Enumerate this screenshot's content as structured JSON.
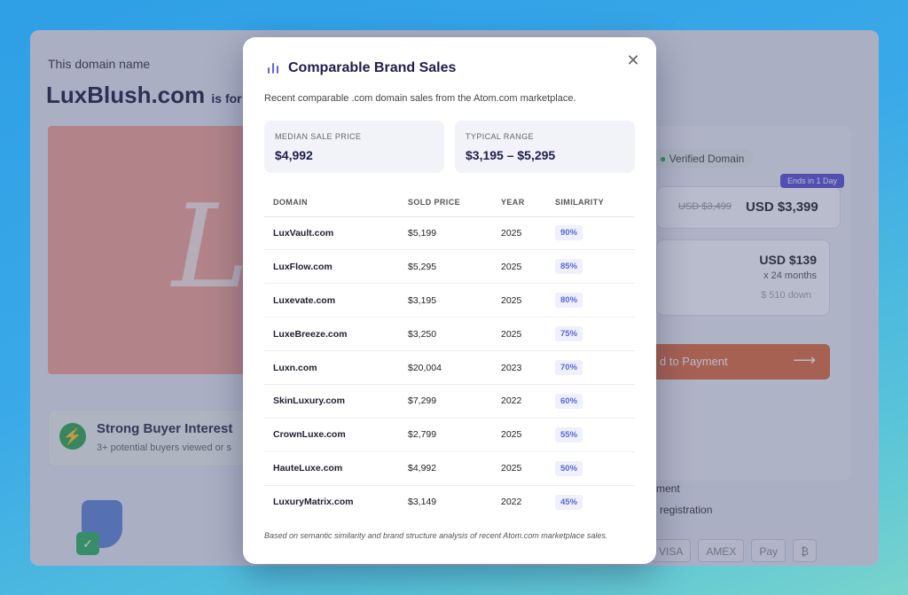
{
  "background": {
    "label": "This domain name",
    "domain": "LuxBlush.com",
    "suffix": "is for",
    "hero_letter": "L",
    "interest_title": "Strong Buyer Interest",
    "interest_sub": "3+ potential buyers viewed or s",
    "verified": "Verified Domain",
    "ends_badge": "Ends in 1 Day",
    "price_old": "USD $3,499",
    "price_new": "USD $3,399",
    "monthly_price": "USD $139",
    "monthly_term": "x 24 months",
    "monthly_down": "$ 510 down",
    "pay_button": "d to Payment",
    "text_1": "yment",
    "text_2": "n registration",
    "pay_methods": [
      "VISA",
      "AMEX",
      "Pay",
      "₿"
    ]
  },
  "modal": {
    "title": "Comparable Brand Sales",
    "subtitle": "Recent comparable .com domain sales from the Atom.com marketplace.",
    "close_symbol": "✕",
    "stats": {
      "median_label": "MEDIAN SALE PRICE",
      "median_value": "$4,992",
      "range_label": "TYPICAL RANGE",
      "range_value": "$3,195 – $5,295"
    },
    "table": {
      "headers": [
        "DOMAIN",
        "SOLD PRICE",
        "YEAR",
        "SIMILARITY"
      ],
      "rows": [
        {
          "domain": "LuxVault.com",
          "price": "$5,199",
          "year": "2025",
          "similarity": "90%"
        },
        {
          "domain": "LuxFlow.com",
          "price": "$5,295",
          "year": "2025",
          "similarity": "85%"
        },
        {
          "domain": "Luxevate.com",
          "price": "$3,195",
          "year": "2025",
          "similarity": "80%"
        },
        {
          "domain": "LuxeBreeze.com",
          "price": "$3,250",
          "year": "2025",
          "similarity": "75%"
        },
        {
          "domain": "Luxn.com",
          "price": "$20,004",
          "year": "2023",
          "similarity": "70%"
        },
        {
          "domain": "SkinLuxury.com",
          "price": "$7,299",
          "year": "2022",
          "similarity": "60%"
        },
        {
          "domain": "CrownLuxe.com",
          "price": "$2,799",
          "year": "2025",
          "similarity": "55%"
        },
        {
          "domain": "HauteLuxe.com",
          "price": "$4,992",
          "year": "2025",
          "similarity": "50%"
        },
        {
          "domain": "LuxuryMatrix.com",
          "price": "$3,149",
          "year": "2022",
          "similarity": "45%"
        }
      ]
    },
    "footnote": "Based on semantic similarity and brand structure analysis of recent Atom.com marketplace sales."
  },
  "colors": {
    "accent": "#5b67d6",
    "title": "#1b1f4b",
    "hero": "#f4a594",
    "pay_button": "#e06c3c"
  }
}
